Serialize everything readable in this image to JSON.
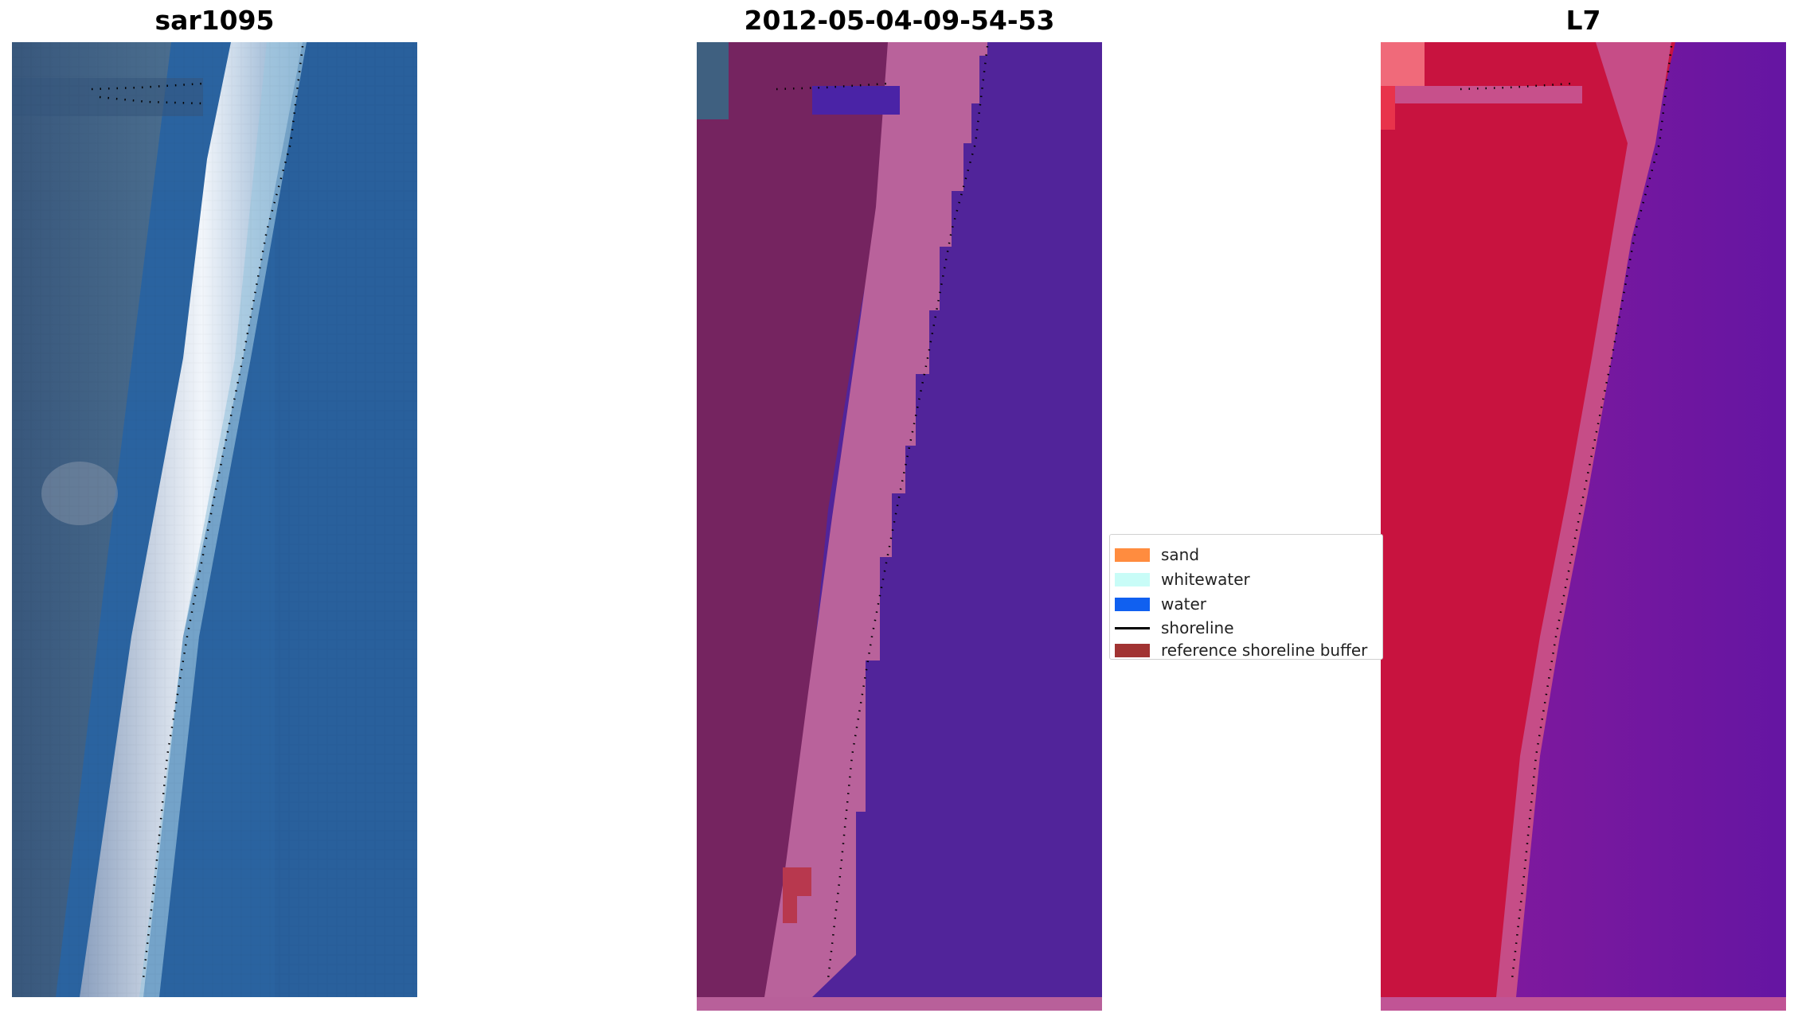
{
  "panels": {
    "rgb_title": "sar1095",
    "classified_title": "2012-05-04-09-54-53",
    "index_title": "L7"
  },
  "legend": {
    "items": [
      {
        "label": "sand",
        "color": "#ff8c3f",
        "kind": "patch"
      },
      {
        "label": "whitewater",
        "color": "#c8fcf7",
        "kind": "patch"
      },
      {
        "label": "water",
        "color": "#1060f0",
        "kind": "patch"
      },
      {
        "label": "shoreline",
        "color": "#000000",
        "kind": "line"
      },
      {
        "label": "reference shoreline buffer",
        "color": "#a13332",
        "kind": "patch"
      }
    ]
  },
  "colors": {
    "water_rgb": "#2a64a0",
    "land_rgb": "#3e5e84",
    "beach_rgb": "#dfe8f2",
    "classified_water": "#51249a",
    "classified_land": "#752460",
    "classified_beach": "#b8609a",
    "index_land": "#c81448",
    "index_water": "#6a16a4"
  }
}
